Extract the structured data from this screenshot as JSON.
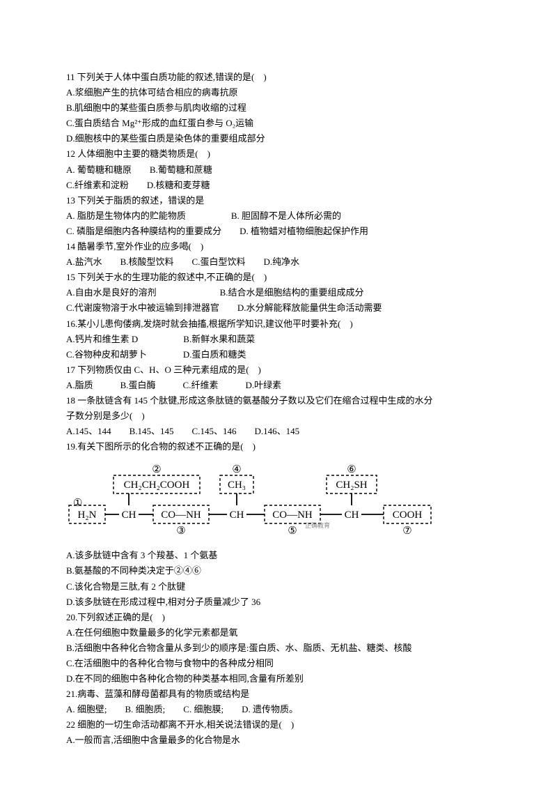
{
  "q11": {
    "stem": "11 下列关于人体中蛋白质功能的叙述,错误的是(　)",
    "a": "A.浆细胞产生的抗体可结合相应的病毒抗原",
    "b": "B.肌细胞中的某些蛋白质参与肌肉收缩的过程",
    "c": "C.蛋白质结合 Mg²⁺形成的血红蛋白参与 O₂运输",
    "d": "D.细胞核中的某些蛋白质是染色体的重要组成部分"
  },
  "q12": {
    "stem": "12 人体细胞中主要的糖类物质是(　)",
    "a": "A. 葡萄糖和糖原　　B.葡萄糖和蔗糖",
    "c": "C.纤维素和淀粉　　D.核糖和麦芽糖"
  },
  "q13": {
    "stem": "13 下列关于脂质的叙述，错误的是",
    "a": "A. 脂肪是生物体内的贮能物质　　　　　B. 胆固醇不是人体所必需的",
    "c": "C. 磷脂是细胞内各种膜结构的重要成分　　D. 植物蜡对植物细胞起保护作用"
  },
  "q14": {
    "stem": "14 酷暑季节,室外作业的应多喝(　)",
    "a": "A.盐汽水　　B.核酸型饮料　　C.蛋白型饮料　　D.纯净水"
  },
  "q15": {
    "stem": "15 下列关于水的生理功能的叙述中,不正确的是(　)",
    "a": "A.自由水是良好的溶剂　　　　　　　B.结合水是细胞结构的重要组成成分",
    "c": "C.代谢废物溶于水中被运输到排泄器官　　D.水分解能释放能量供生命活动需要"
  },
  "q16": {
    "stem": "16.某小儿患佝偻病,发烧时就会抽搐,根据所学知识,建议他平时要补充(　)",
    "a": "A.钙片和维生素 D　　　　　B.新鲜水果和蔬菜",
    "c": "C.谷物种皮和胡萝卜　　　　D.蛋白质和糖类"
  },
  "q17": {
    "stem": "17 下列物质仅由 C、H、O 三种元素组成的是(　)",
    "a": "A.脂质　　　B.蛋白酶　　　C.纤维素　　　D.叶绿素"
  },
  "q18": {
    "stem1": "18 一条肽链含有 145 个肽键,形成这条肽链的氨基酸分子数以及它们在缩合过程中生成的水分",
    "stem2": "子数分别是多少(　)",
    "a": "A.145、144　　B.145、145　　C.145、146　　D.146、145"
  },
  "q19": {
    "stem": "19.有关下图所示的化合物的叙述不正确的是(　)",
    "a": "A.该多肽链中含有 3 个羧基、1 个氨基",
    "b": "B.氨基酸的不同种类决定于②④⑥",
    "c": "C.该化合物是三肽,有 2 个肽键",
    "d": "D.该多肽链在形成过程中,相对分子质量减少了 36"
  },
  "q20": {
    "stem": "20.下列叙述正确的是(　)",
    "a": "A.在任何细胞中数量最多的化学元素都是氧",
    "b": "B.活细胞中各种化合物含量从多到少的顺序是:蛋白质、水、脂质、无机盐、糖类、核酸",
    "c": "C.在活细胞中的各种化合物与食物中的各种成分相同",
    "d": "D.在不同的细胞中各种化合物的种类基本相同,含量有所差别"
  },
  "q21": {
    "stem": "21.病毒、蓝藻和酵母菌都具有的物质或结构是",
    "a": "A. 细胞壁;　　B. 细胞质;　　C. 细胞膜;　　D. 遗传物质。"
  },
  "q22": {
    "stem": "22 细胞的一切生命活动都离不开水,相关说法错误的是(　)",
    "a": "A.一般而言,活细胞中含量最多的化合物是水"
  },
  "diagram": {
    "labels": {
      "l1": "①",
      "l2": "②",
      "l3": "③",
      "l4": "④",
      "l5": "⑤",
      "l6": "⑥",
      "l7": "⑦"
    },
    "groups": {
      "g1": "H₂N",
      "g2": "CH₂CH₂COOH",
      "g3": "CO—NH",
      "g4": "CH₃",
      "g5": "CO—NH",
      "g6": "CH₂SH",
      "g7": "COOH",
      "ch": "CH"
    },
    "watermark": "正确教育",
    "colors": {
      "stroke": "#000000",
      "text": "#000000",
      "bg": "#ffffff"
    },
    "font_size_main": 15,
    "font_size_label": 15,
    "font_family": "Times New Roman",
    "box_dash": "4,3"
  }
}
